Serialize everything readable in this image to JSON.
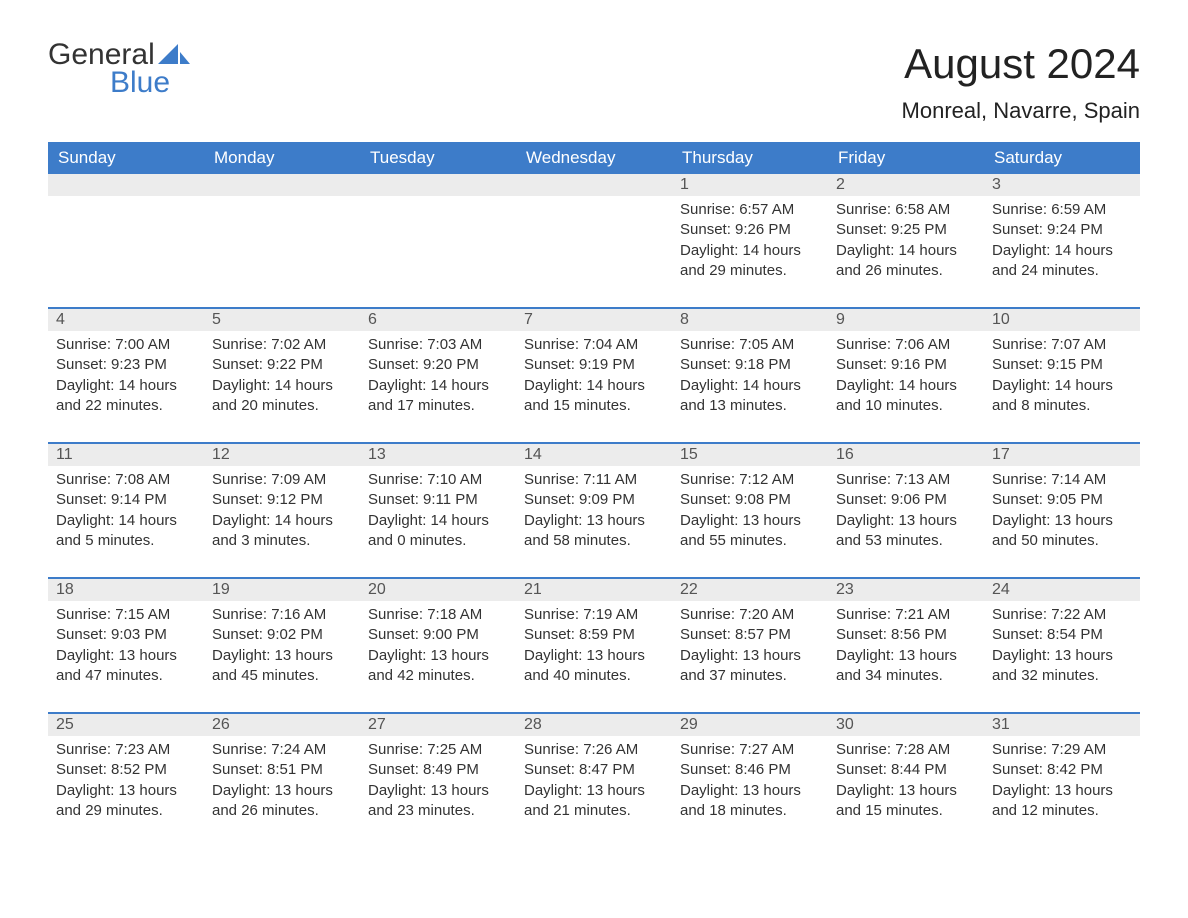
{
  "colors": {
    "header_bg": "#3d7cc9",
    "header_text": "#ffffff",
    "daynum_bg": "#ececec",
    "daynum_text": "#555555",
    "body_text": "#333333",
    "accent": "#3d7cc9",
    "page_bg": "#ffffff"
  },
  "fonts": {
    "family": "Arial, Helvetica, sans-serif",
    "month_title_pt": 42,
    "location_pt": 22,
    "weekday_pt": 17,
    "daynum_pt": 16,
    "body_pt": 15
  },
  "logo": {
    "text_top": "General",
    "text_bottom": "Blue",
    "sail_color": "#3d7cc9"
  },
  "title": "August 2024",
  "location": "Monreal, Navarre, Spain",
  "weekdays": [
    "Sunday",
    "Monday",
    "Tuesday",
    "Wednesday",
    "Thursday",
    "Friday",
    "Saturday"
  ],
  "leading_blanks": 4,
  "days": [
    {
      "n": "1",
      "sunrise": "Sunrise: 6:57 AM",
      "sunset": "Sunset: 9:26 PM",
      "daylight": "Daylight: 14 hours and 29 minutes."
    },
    {
      "n": "2",
      "sunrise": "Sunrise: 6:58 AM",
      "sunset": "Sunset: 9:25 PM",
      "daylight": "Daylight: 14 hours and 26 minutes."
    },
    {
      "n": "3",
      "sunrise": "Sunrise: 6:59 AM",
      "sunset": "Sunset: 9:24 PM",
      "daylight": "Daylight: 14 hours and 24 minutes."
    },
    {
      "n": "4",
      "sunrise": "Sunrise: 7:00 AM",
      "sunset": "Sunset: 9:23 PM",
      "daylight": "Daylight: 14 hours and 22 minutes."
    },
    {
      "n": "5",
      "sunrise": "Sunrise: 7:02 AM",
      "sunset": "Sunset: 9:22 PM",
      "daylight": "Daylight: 14 hours and 20 minutes."
    },
    {
      "n": "6",
      "sunrise": "Sunrise: 7:03 AM",
      "sunset": "Sunset: 9:20 PM",
      "daylight": "Daylight: 14 hours and 17 minutes."
    },
    {
      "n": "7",
      "sunrise": "Sunrise: 7:04 AM",
      "sunset": "Sunset: 9:19 PM",
      "daylight": "Daylight: 14 hours and 15 minutes."
    },
    {
      "n": "8",
      "sunrise": "Sunrise: 7:05 AM",
      "sunset": "Sunset: 9:18 PM",
      "daylight": "Daylight: 14 hours and 13 minutes."
    },
    {
      "n": "9",
      "sunrise": "Sunrise: 7:06 AM",
      "sunset": "Sunset: 9:16 PM",
      "daylight": "Daylight: 14 hours and 10 minutes."
    },
    {
      "n": "10",
      "sunrise": "Sunrise: 7:07 AM",
      "sunset": "Sunset: 9:15 PM",
      "daylight": "Daylight: 14 hours and 8 minutes."
    },
    {
      "n": "11",
      "sunrise": "Sunrise: 7:08 AM",
      "sunset": "Sunset: 9:14 PM",
      "daylight": "Daylight: 14 hours and 5 minutes."
    },
    {
      "n": "12",
      "sunrise": "Sunrise: 7:09 AM",
      "sunset": "Sunset: 9:12 PM",
      "daylight": "Daylight: 14 hours and 3 minutes."
    },
    {
      "n": "13",
      "sunrise": "Sunrise: 7:10 AM",
      "sunset": "Sunset: 9:11 PM",
      "daylight": "Daylight: 14 hours and 0 minutes."
    },
    {
      "n": "14",
      "sunrise": "Sunrise: 7:11 AM",
      "sunset": "Sunset: 9:09 PM",
      "daylight": "Daylight: 13 hours and 58 minutes."
    },
    {
      "n": "15",
      "sunrise": "Sunrise: 7:12 AM",
      "sunset": "Sunset: 9:08 PM",
      "daylight": "Daylight: 13 hours and 55 minutes."
    },
    {
      "n": "16",
      "sunrise": "Sunrise: 7:13 AM",
      "sunset": "Sunset: 9:06 PM",
      "daylight": "Daylight: 13 hours and 53 minutes."
    },
    {
      "n": "17",
      "sunrise": "Sunrise: 7:14 AM",
      "sunset": "Sunset: 9:05 PM",
      "daylight": "Daylight: 13 hours and 50 minutes."
    },
    {
      "n": "18",
      "sunrise": "Sunrise: 7:15 AM",
      "sunset": "Sunset: 9:03 PM",
      "daylight": "Daylight: 13 hours and 47 minutes."
    },
    {
      "n": "19",
      "sunrise": "Sunrise: 7:16 AM",
      "sunset": "Sunset: 9:02 PM",
      "daylight": "Daylight: 13 hours and 45 minutes."
    },
    {
      "n": "20",
      "sunrise": "Sunrise: 7:18 AM",
      "sunset": "Sunset: 9:00 PM",
      "daylight": "Daylight: 13 hours and 42 minutes."
    },
    {
      "n": "21",
      "sunrise": "Sunrise: 7:19 AM",
      "sunset": "Sunset: 8:59 PM",
      "daylight": "Daylight: 13 hours and 40 minutes."
    },
    {
      "n": "22",
      "sunrise": "Sunrise: 7:20 AM",
      "sunset": "Sunset: 8:57 PM",
      "daylight": "Daylight: 13 hours and 37 minutes."
    },
    {
      "n": "23",
      "sunrise": "Sunrise: 7:21 AM",
      "sunset": "Sunset: 8:56 PM",
      "daylight": "Daylight: 13 hours and 34 minutes."
    },
    {
      "n": "24",
      "sunrise": "Sunrise: 7:22 AM",
      "sunset": "Sunset: 8:54 PM",
      "daylight": "Daylight: 13 hours and 32 minutes."
    },
    {
      "n": "25",
      "sunrise": "Sunrise: 7:23 AM",
      "sunset": "Sunset: 8:52 PM",
      "daylight": "Daylight: 13 hours and 29 minutes."
    },
    {
      "n": "26",
      "sunrise": "Sunrise: 7:24 AM",
      "sunset": "Sunset: 8:51 PM",
      "daylight": "Daylight: 13 hours and 26 minutes."
    },
    {
      "n": "27",
      "sunrise": "Sunrise: 7:25 AM",
      "sunset": "Sunset: 8:49 PM",
      "daylight": "Daylight: 13 hours and 23 minutes."
    },
    {
      "n": "28",
      "sunrise": "Sunrise: 7:26 AM",
      "sunset": "Sunset: 8:47 PM",
      "daylight": "Daylight: 13 hours and 21 minutes."
    },
    {
      "n": "29",
      "sunrise": "Sunrise: 7:27 AM",
      "sunset": "Sunset: 8:46 PM",
      "daylight": "Daylight: 13 hours and 18 minutes."
    },
    {
      "n": "30",
      "sunrise": "Sunrise: 7:28 AM",
      "sunset": "Sunset: 8:44 PM",
      "daylight": "Daylight: 13 hours and 15 minutes."
    },
    {
      "n": "31",
      "sunrise": "Sunrise: 7:29 AM",
      "sunset": "Sunset: 8:42 PM",
      "daylight": "Daylight: 13 hours and 12 minutes."
    }
  ]
}
